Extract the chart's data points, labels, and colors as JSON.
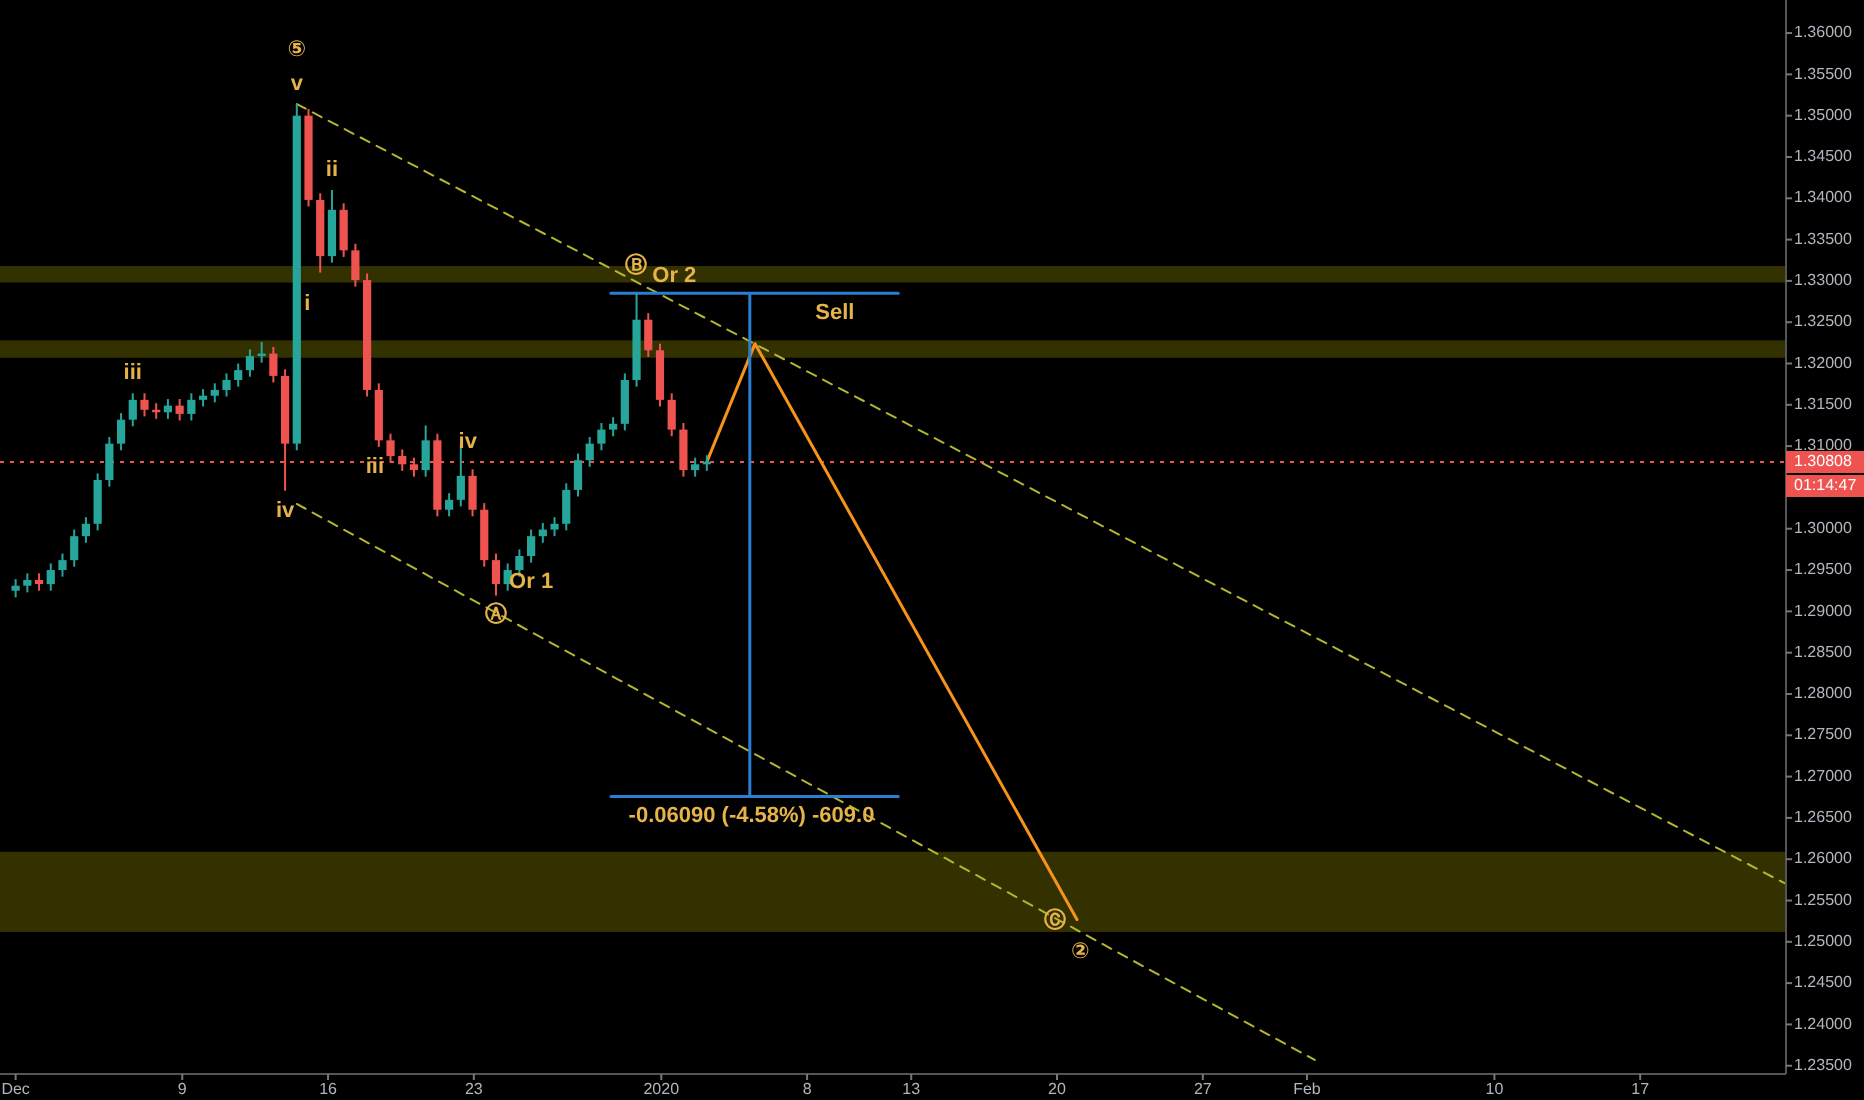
{
  "chart_data": {
    "type": "candlestick",
    "x": [
      "2019-12-01T00:00",
      "2019-12-01T13:30",
      "2019-12-02T03:00",
      "2019-12-02T16:30",
      "2019-12-03T06:00",
      "2019-12-03T19:30",
      "2019-12-04T09:00",
      "2019-12-04T22:30",
      "2019-12-05T12:00",
      "2019-12-06T01:30",
      "2019-12-06T15:00",
      "2019-12-07T04:30",
      "2019-12-07T18:00",
      "2019-12-08T07:30",
      "2019-12-08T21:00",
      "2019-12-09T10:30",
      "2019-12-10T00:00",
      "2019-12-10T13:30",
      "2019-12-11T03:00",
      "2019-12-11T16:30",
      "2019-12-12T06:00",
      "2019-12-12T19:30",
      "2019-12-13T09:00",
      "2019-12-13T22:30",
      "2019-12-14T12:00",
      "2019-12-15T01:30",
      "2019-12-15T15:00",
      "2019-12-16T04:30",
      "2019-12-16T18:00",
      "2019-12-17T07:30",
      "2019-12-17T21:00",
      "2019-12-18T10:30",
      "2019-12-19T00:00",
      "2019-12-19T13:30",
      "2019-12-20T03:00",
      "2019-12-20T16:30",
      "2019-12-21T06:00",
      "2019-12-21T19:30",
      "2019-12-22T09:00",
      "2019-12-22T22:30",
      "2019-12-23T12:00",
      "2019-12-24T01:30",
      "2019-12-24T15:00",
      "2019-12-25T04:30",
      "2019-12-25T18:00",
      "2019-12-26T07:30",
      "2019-12-26T21:00",
      "2019-12-27T10:30",
      "2019-12-28T00:00",
      "2019-12-28T13:30",
      "2019-12-29T03:00",
      "2019-12-29T16:30",
      "2019-12-30T06:00",
      "2019-12-30T19:30",
      "2019-12-31T09:00",
      "2019-12-31T22:30",
      "2020-01-01T12:00",
      "2020-01-02T01:30",
      "2020-01-02T15:00",
      "2020-01-03T04:30"
    ],
    "ohlc": [
      [
        1.2925,
        1.2939,
        1.2917,
        1.2931
      ],
      [
        1.2931,
        1.2946,
        1.2923,
        1.2938
      ],
      [
        1.2938,
        1.2946,
        1.2925,
        1.2933
      ],
      [
        1.2933,
        1.2958,
        1.2925,
        1.295
      ],
      [
        1.295,
        1.297,
        1.2942,
        1.2962
      ],
      [
        1.2962,
        1.2999,
        1.2954,
        1.2991
      ],
      [
        1.2991,
        1.3014,
        1.2983,
        1.3006
      ],
      [
        1.3006,
        1.3067,
        1.2998,
        1.3059
      ],
      [
        1.3059,
        1.3111,
        1.3051,
        1.3103
      ],
      [
        1.3103,
        1.314,
        1.3095,
        1.3132
      ],
      [
        1.3132,
        1.3164,
        1.3124,
        1.3156
      ],
      [
        1.3156,
        1.3164,
        1.3136,
        1.3144
      ],
      [
        1.3144,
        1.3152,
        1.3133,
        1.3141
      ],
      [
        1.3141,
        1.3157,
        1.3133,
        1.3149
      ],
      [
        1.3149,
        1.3157,
        1.3131,
        1.3139
      ],
      [
        1.3139,
        1.3164,
        1.3131,
        1.3156
      ],
      [
        1.3156,
        1.3169,
        1.3148,
        1.3161
      ],
      [
        1.3161,
        1.3176,
        1.3153,
        1.3168
      ],
      [
        1.3168,
        1.3188,
        1.316,
        1.318
      ],
      [
        1.318,
        1.32,
        1.3172,
        1.3192
      ],
      [
        1.3192,
        1.3217,
        1.3184,
        1.3209
      ],
      [
        1.3209,
        1.3226,
        1.3201,
        1.3212
      ],
      [
        1.3212,
        1.322,
        1.3177,
        1.3185
      ],
      [
        1.3185,
        1.3193,
        1.3046,
        1.3103
      ],
      [
        1.3103,
        1.3514,
        1.3095,
        1.35
      ],
      [
        1.35,
        1.3508,
        1.339,
        1.3398
      ],
      [
        1.3398,
        1.3406,
        1.331,
        1.333
      ],
      [
        1.333,
        1.341,
        1.3322,
        1.3386
      ],
      [
        1.3386,
        1.3394,
        1.3329,
        1.3337
      ],
      [
        1.3337,
        1.3345,
        1.3293,
        1.3301
      ],
      [
        1.3301,
        1.3309,
        1.316,
        1.3168
      ],
      [
        1.3168,
        1.3176,
        1.3099,
        1.3107
      ],
      [
        1.3107,
        1.3115,
        1.308,
        1.3088
      ],
      [
        1.3088,
        1.3096,
        1.307,
        1.3078
      ],
      [
        1.3078,
        1.3086,
        1.3063,
        1.3071
      ],
      [
        1.3071,
        1.3125,
        1.3063,
        1.3107
      ],
      [
        1.3107,
        1.3115,
        1.3015,
        1.3023
      ],
      [
        1.3023,
        1.3043,
        1.3015,
        1.3035
      ],
      [
        1.3035,
        1.3102,
        1.3027,
        1.3064
      ],
      [
        1.3064,
        1.3072,
        1.3015,
        1.3023
      ],
      [
        1.3023,
        1.3031,
        1.2954,
        1.2962
      ],
      [
        1.2962,
        1.297,
        1.2919,
        1.2933
      ],
      [
        1.2933,
        1.2958,
        1.2925,
        1.295
      ],
      [
        1.295,
        1.2975,
        1.2942,
        1.2967
      ],
      [
        1.2967,
        1.2999,
        1.2959,
        1.2991
      ],
      [
        1.2991,
        1.3007,
        1.2983,
        1.2999
      ],
      [
        1.2999,
        1.3014,
        1.2991,
        1.3006
      ],
      [
        1.3006,
        1.3055,
        1.2998,
        1.3047
      ],
      [
        1.3047,
        1.3091,
        1.3039,
        1.3083
      ],
      [
        1.3083,
        1.3111,
        1.3075,
        1.3103
      ],
      [
        1.3103,
        1.3128,
        1.3095,
        1.312
      ],
      [
        1.312,
        1.3135,
        1.3112,
        1.3127
      ],
      [
        1.3127,
        1.3188,
        1.3119,
        1.318
      ],
      [
        1.318,
        1.3285,
        1.3172,
        1.3253
      ],
      [
        1.3253,
        1.3261,
        1.3208,
        1.3216
      ],
      [
        1.3216,
        1.3224,
        1.3148,
        1.3156
      ],
      [
        1.3156,
        1.3164,
        1.3112,
        1.312
      ],
      [
        1.312,
        1.3128,
        1.3063,
        1.3071
      ],
      [
        1.3071,
        1.3086,
        1.3063,
        1.3078
      ],
      [
        1.3078,
        1.3089,
        1.307,
        1.3081
      ]
    ],
    "series": [
      {
        "type": "line",
        "color": "#b5b530",
        "line_style": "dashed",
        "x": [
          "2019-12-14T12:00",
          "2020-02-24"
        ],
        "values": [
          1.3514,
          1.257
        ]
      },
      {
        "type": "line",
        "color": "#b5b530",
        "line_style": "dashed",
        "x": [
          "2019-12-14T12:00",
          "2020-02-01T09:00"
        ],
        "values": [
          1.303,
          1.2357
        ]
      },
      {
        "type": "line",
        "color": "#f7931a",
        "line_style": "solid",
        "x": [
          "2020-01-03T04:30",
          "2020-01-05T12:00",
          "2020-01-20T23:00"
        ],
        "values": [
          1.3081,
          1.3224,
          1.2527
        ]
      },
      {
        "type": "line",
        "color": "#2a7fd4",
        "line_style": "solid",
        "x": [
          "2019-12-29T14:00",
          "2020-01-12T09:00"
        ],
        "values": [
          1.3285,
          1.3285
        ]
      },
      {
        "type": "line",
        "color": "#2a7fd4",
        "line_style": "solid",
        "x": [
          "2020-01-05T06:00",
          "2020-01-05T06:00"
        ],
        "values": [
          1.3285,
          1.2676
        ]
      },
      {
        "type": "line",
        "color": "#2a7fd4",
        "line_style": "solid",
        "x": [
          "2019-12-29T14:00",
          "2020-01-12T09:00"
        ],
        "values": [
          1.2676,
          1.2676
        ]
      }
    ],
    "xlim": [
      "2019-11-30T06:00",
      "2020-02-24"
    ],
    "xticks": [
      {
        "value": "2019-12-01",
        "label": "Dec"
      },
      {
        "value": "2019-12-09",
        "label": "9"
      },
      {
        "value": "2019-12-16",
        "label": "16"
      },
      {
        "value": "2019-12-23",
        "label": "23"
      },
      {
        "value": "2020-01-01",
        "label": "2020"
      },
      {
        "value": "2020-01-08",
        "label": "8"
      },
      {
        "value": "2020-01-13",
        "label": "13"
      },
      {
        "value": "2020-01-20",
        "label": "20"
      },
      {
        "value": "2020-01-27",
        "label": "27"
      },
      {
        "value": "2020-02-01",
        "label": "Feb"
      },
      {
        "value": "2020-02-10",
        "label": "10"
      },
      {
        "value": "2020-02-17",
        "label": "17"
      }
    ],
    "ylim": [
      1.234,
      1.364
    ],
    "yticks": [
      {
        "value": 1.235,
        "label": "1.23500"
      },
      {
        "value": 1.24,
        "label": "1.24000"
      },
      {
        "value": 1.245,
        "label": "1.24500"
      },
      {
        "value": 1.25,
        "label": "1.25000"
      },
      {
        "value": 1.255,
        "label": "1.25500"
      },
      {
        "value": 1.26,
        "label": "1.26000"
      },
      {
        "value": 1.265,
        "label": "1.26500"
      },
      {
        "value": 1.27,
        "label": "1.27000"
      },
      {
        "value": 1.275,
        "label": "1.27500"
      },
      {
        "value": 1.28,
        "label": "1.28000"
      },
      {
        "value": 1.285,
        "label": "1.28500"
      },
      {
        "value": 1.29,
        "label": "1.29000"
      },
      {
        "value": 1.295,
        "label": "1.29500"
      },
      {
        "value": 1.3,
        "label": "1.30000"
      },
      {
        "value": 1.305,
        "label": null
      },
      {
        "value": 1.31,
        "label": "1.31000"
      },
      {
        "value": 1.315,
        "label": "1.31500"
      },
      {
        "value": 1.32,
        "label": "1.32000"
      },
      {
        "value": 1.325,
        "label": "1.32500"
      },
      {
        "value": 1.33,
        "label": "1.33000"
      },
      {
        "value": 1.335,
        "label": "1.33500"
      },
      {
        "value": 1.34,
        "label": "1.34000"
      },
      {
        "value": 1.345,
        "label": "1.34500"
      },
      {
        "value": 1.35,
        "label": "1.35000"
      },
      {
        "value": 1.355,
        "label": "1.35500"
      },
      {
        "value": 1.36,
        "label": "1.36000"
      }
    ],
    "ref_lines": [
      {
        "axis": "y",
        "value": 1.30808,
        "label": "1.30808",
        "color": "#ef5350",
        "line_style": "dotted"
      }
    ],
    "bands": [
      {
        "axis": "y",
        "from": 1.3298,
        "to": 1.3318,
        "color": "#3a3600"
      },
      {
        "axis": "y",
        "from": 1.3207,
        "to": 1.3228,
        "color": "#3a3600"
      },
      {
        "axis": "y",
        "from": 1.2512,
        "to": 1.2609,
        "color": "#3a3600"
      }
    ],
    "annotations": [
      "01:14:47",
      {
        "text": "v",
        "x": "2019-12-14T12:00",
        "y": 1.3514
      },
      {
        "text": "⑤",
        "x": "2019-12-14T12:00",
        "y": 1.3514
      },
      {
        "text": "ii",
        "x": "2019-12-16T04:30",
        "y": 1.341
      },
      {
        "text": "i",
        "x": "2019-12-15T00:00",
        "y": 1.3272
      },
      {
        "text": "iii",
        "x": "2019-12-06T15:00",
        "y": 1.3164
      },
      {
        "text": "iv",
        "x": "2019-12-13T22:30",
        "y": 1.3046
      },
      {
        "text": "iii",
        "x": "2019-12-18T06:00",
        "y": 1.3074
      },
      {
        "text": "iv",
        "x": "2019-12-22T17:00",
        "y": 1.3105
      },
      {
        "text": "Ⓐ",
        "x": "2019-12-24T01:30",
        "y": 1.2919
      },
      {
        "text": "Or 1",
        "x": "2019-12-25T18:00",
        "y": 1.2959
      },
      {
        "text": "Ⓑ",
        "x": "2019-12-30T19:00",
        "y": 1.3318
      },
      {
        "text": "Or 2",
        "x": "2020-01-01T15:00",
        "y": 1.3306
      },
      {
        "text": "Sell",
        "x": "2020-01-09T08:00",
        "y": 1.3285
      },
      {
        "text": "-0.06090 (-4.58%) -609.0",
        "x": "2020-01-05T08:00",
        "y": 1.2676
      },
      {
        "text": "Ⓒ",
        "x": "2020-01-19T22:00",
        "y": 1.2549
      },
      {
        "text": "②",
        "x": "2020-01-21T03:00",
        "y": 1.2512
      }
    ]
  }
}
